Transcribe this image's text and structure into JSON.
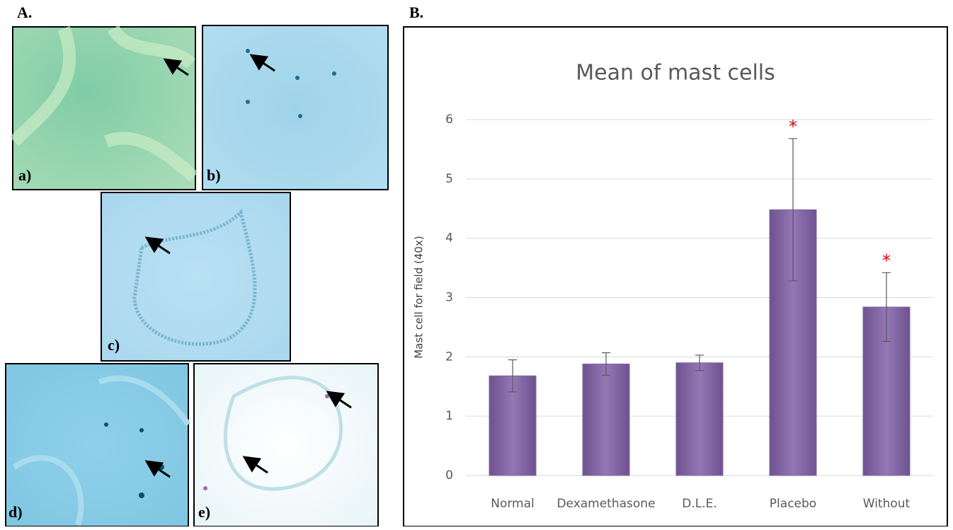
{
  "panel_labels": {
    "left": "A.",
    "right": "B."
  },
  "micrographs": [
    {
      "label": "a)"
    },
    {
      "label": "b)"
    },
    {
      "label": "c)"
    },
    {
      "label": "d)"
    },
    {
      "label": "e)"
    }
  ],
  "chart_data": {
    "type": "bar",
    "title": "Mean of mast cells",
    "y_label": "Mast cell for field (40x)",
    "categories": [
      "Normal",
      "Dexamethasone",
      "D.L.E.",
      "Placebo",
      "Without"
    ],
    "values": [
      1.68,
      1.88,
      1.9,
      4.48,
      2.84
    ],
    "errors": [
      0.27,
      0.19,
      0.13,
      1.2,
      0.58
    ],
    "significance": [
      null,
      null,
      null,
      "*",
      "*"
    ],
    "color": "#8064a2",
    "ylim": [
      0,
      6
    ],
    "yticks": [
      0,
      1,
      2,
      3,
      4,
      5,
      6
    ],
    "grid": true
  }
}
